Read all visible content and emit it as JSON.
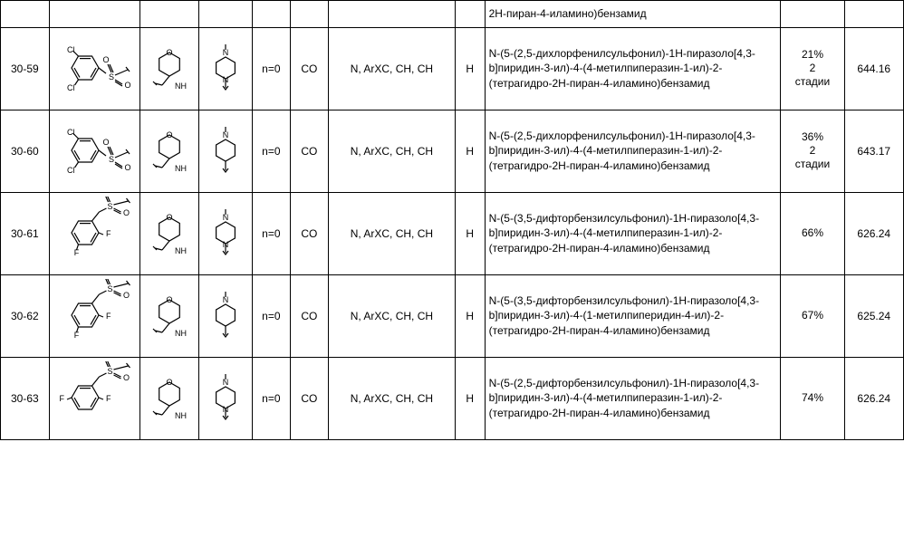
{
  "partial_row_top": {
    "name": "2H-пиран-4-иламино)бензамид"
  },
  "rows": [
    {
      "id": "30-59",
      "structure1": "dichloro-phenyl-sulfonyl",
      "structure2": "tetrahydropyran-nh",
      "structure3": "n-methyl-piperazine",
      "n": "n=0",
      "linker": "CO",
      "hetero": "N, ArXC, CH, CH",
      "r": "H",
      "name": "N-(5-(2,5-дихлорфенилсульфонил)-1H-пиразоло[4,3-b]пиридин-3-ил)-4-(4-метилпиперазин-1-ил)-2-(тетрагидро-2H-пиран-4-иламино)бензамид",
      "yield": "21%\n2\nстадии",
      "mass": "644.16"
    },
    {
      "id": "30-60",
      "structure1": "dichloro-phenyl-sulfonyl",
      "structure2": "tetrahydropyran-nh",
      "structure3": "n-methyl-piperidine",
      "n": "n=0",
      "linker": "CO",
      "hetero": "N, ArXC, CH, CH",
      "r": "H",
      "name": "N-(5-(2,5-дихлорфенилсульфонил)-1H-пиразоло[4,3-b]пиридин-3-ил)-4-(4-метилпиперазин-1-ил)-2-(тетрагидро-2H-пиран-4-иламино)бензамид",
      "yield": "36%\n2\nстадии",
      "mass": "643.17"
    },
    {
      "id": "30-61",
      "structure1": "difluoro-benzyl-sulfonyl-35",
      "structure2": "tetrahydropyran-nh",
      "structure3": "n-methyl-piperazine",
      "n": "n=0",
      "linker": "CO",
      "hetero": "N, ArXC, CH, CH",
      "r": "H",
      "name": "N-(5-(3,5-дифторбензилсульфонил)-1H-пиразоло[4,3-b]пиридин-3-ил)-4-(4-метилпиперазин-1-ил)-2-(тетрагидро-2H-пиран-4-иламино)бензамид",
      "yield": "66%",
      "mass": "626.24"
    },
    {
      "id": "30-62",
      "structure1": "difluoro-benzyl-sulfonyl-35",
      "structure2": "tetrahydropyran-nh",
      "structure3": "n-methyl-piperidine",
      "n": "n=0",
      "linker": "CO",
      "hetero": "N, ArXC, CH, CH",
      "r": "H",
      "name": "N-(5-(3,5-дифторбензилсульфонил)-1H-пиразоло[4,3-b]пиридин-3-ил)-4-(1-метилпиперидин-4-ил)-2-(тетрагидро-2H-пиран-4-иламино)бензамид",
      "yield": "67%",
      "mass": "625.24"
    },
    {
      "id": "30-63",
      "structure1": "difluoro-benzyl-sulfonyl-25",
      "structure2": "tetrahydropyran-nh",
      "structure3": "n-methyl-piperazine",
      "n": "n=0",
      "linker": "CO",
      "hetero": "N, ArXC, CH, CH",
      "r": "H",
      "name": "N-(5-(2,5-дифторбензилсульфонил)-1H-пиразоло[4,3-b]пиридин-3-ил)-4-(4-метилпиперазин-1-ил)-2-(тетрагидро-2H-пиран-4-иламино)бензамид",
      "yield": "74%",
      "mass": "626.24"
    }
  ],
  "style": {
    "stroke": "#000000",
    "stroke_width": 1.2,
    "font_size_struct": 9
  }
}
